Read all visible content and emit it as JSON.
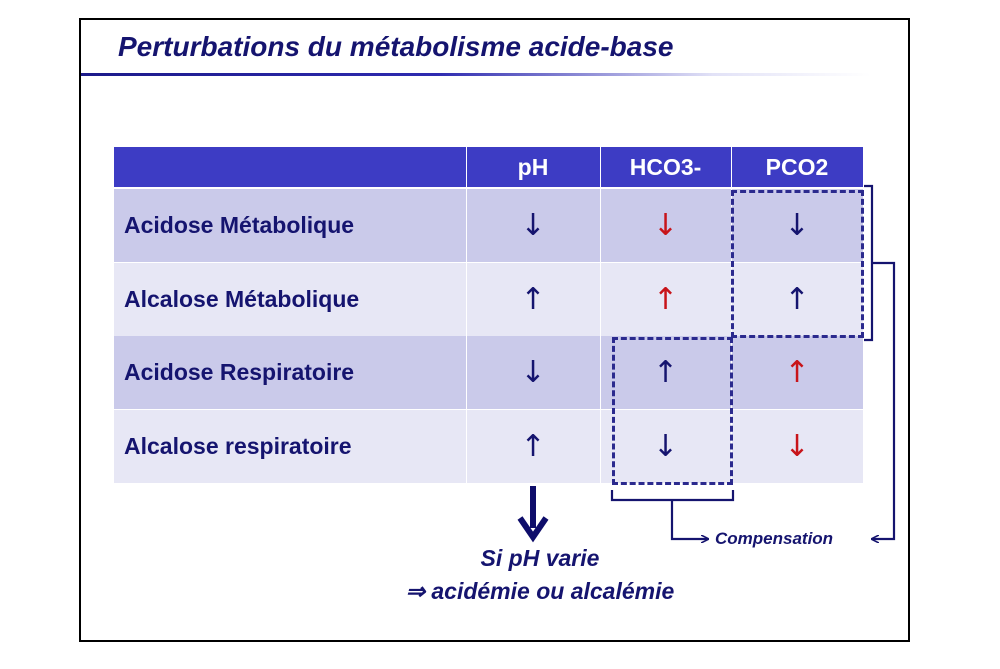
{
  "slide": {
    "title": "Perturbations du métabolisme acide-base"
  },
  "table": {
    "headers": [
      "",
      "pH",
      "HCO3-",
      "PCO2"
    ],
    "rows": [
      {
        "label": "Acidose Métabolique",
        "ph": "↓",
        "hco3": "↓",
        "pco2": "↓"
      },
      {
        "label": "Alcalose Métabolique",
        "ph": "↑",
        "hco3": "↑",
        "pco2": "↑"
      },
      {
        "label": "Acidose Respiratoire",
        "ph": "↓",
        "hco3": "↑",
        "pco2": "↑"
      },
      {
        "label": "Alcalose respiratoire",
        "ph": "↑",
        "hco3": "↓",
        "pco2": "↓"
      }
    ],
    "highlight_color": "#c8141a",
    "header_color": "#3d3cc4"
  },
  "annotations": {
    "compensation": "Compensation",
    "note_line1": "Si pH varie",
    "note_line2": "⇒ acidémie ou alcalémie"
  }
}
